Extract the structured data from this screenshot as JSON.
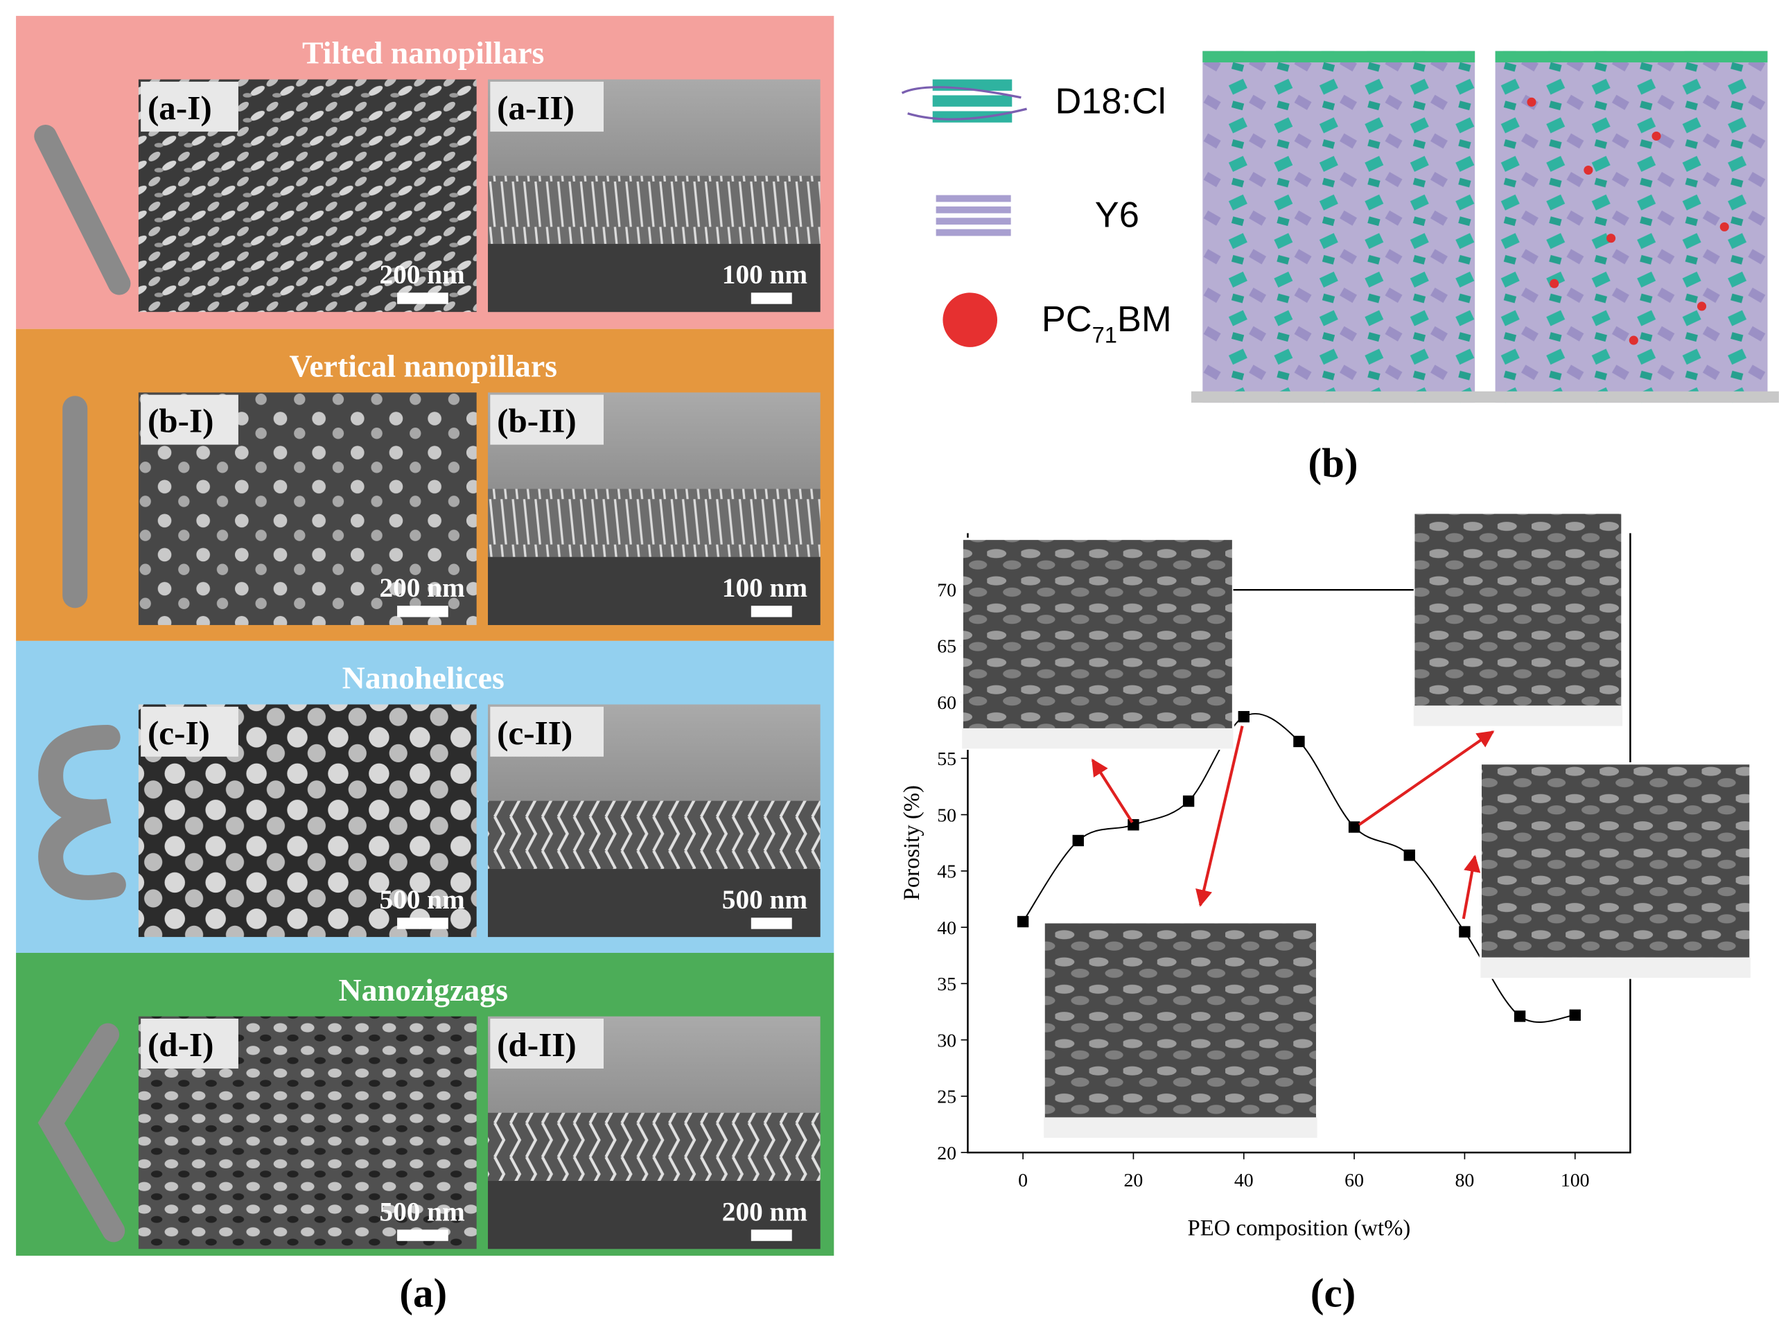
{
  "panel_a": {
    "rows": [
      {
        "title": "Tilted nanopillars",
        "left_label": "(a-I)",
        "left_scale": "200 nm",
        "right_label": "(a-II)",
        "right_scale": "100 nm"
      },
      {
        "title": "Vertical nanopillars",
        "left_label": "(b-I)",
        "left_scale": "200 nm",
        "right_label": "(b-II)",
        "right_scale": "100 nm"
      },
      {
        "title": "Nanohelices",
        "left_label": "(c-I)",
        "left_scale": "500 nm",
        "right_label": "(c-II)",
        "right_scale": "500 nm"
      },
      {
        "title": "Nanozigzags",
        "left_label": "(d-I)",
        "left_scale": "500 nm",
        "right_label": "(d-II)",
        "right_scale": "200 nm"
      }
    ],
    "caption": "(a)"
  },
  "panel_b": {
    "legend": [
      {
        "label": "D18:Cl"
      },
      {
        "label": "Y6"
      },
      {
        "label_parts": [
          "PC",
          "71",
          "BM"
        ]
      }
    ],
    "caption": "(b)"
  },
  "panel_c": {
    "caption": "(c)"
  },
  "chart_data": {
    "type": "line",
    "x_label": "PEO composition (wt%)",
    "y_label": "Porosity (%)",
    "x": [
      0,
      10,
      20,
      30,
      40,
      50,
      60,
      70,
      80,
      90,
      100
    ],
    "series": [
      {
        "name": "Porosity",
        "color": "#000000",
        "values": [
          40.5,
          47.7,
          49.1,
          51.2,
          58.7,
          56.5,
          48.9,
          46.4,
          39.6,
          32.1,
          32.2
        ]
      }
    ],
    "xlim": [
      -10,
      110
    ],
    "xticks": [
      0,
      20,
      40,
      60,
      80,
      100
    ],
    "ylim": [
      20,
      75
    ],
    "yticks": [
      20,
      25,
      30,
      35,
      40,
      45,
      50,
      55,
      60,
      65,
      70
    ],
    "smooth": true
  }
}
